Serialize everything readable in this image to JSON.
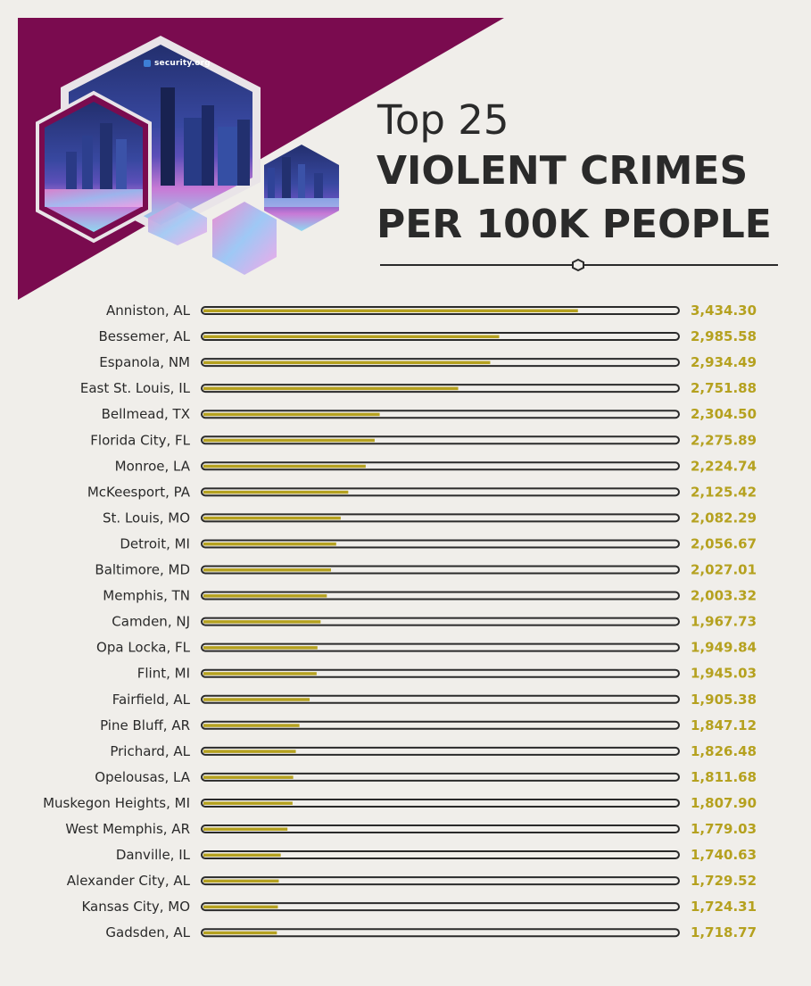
{
  "brand": {
    "logo_text": "security.org"
  },
  "colors": {
    "background": "#f0eeea",
    "banner": "#7a0b4f",
    "bar_fill": "#b5a11f",
    "track_stroke": "#2a2a2a",
    "text": "#2a2a2a"
  },
  "header": {
    "title_top": "Top 25",
    "title_line1": "VIOLENT CRIMES",
    "title_line2": "PER 100K PEOPLE"
  },
  "chart_data": {
    "type": "bar",
    "orientation": "horizontal",
    "title": "Top 25 VIOLENT CRIMES PER 100K PEOPLE",
    "xlabel": "",
    "ylabel": "",
    "categories": [
      "Anniston, AL",
      "Bessemer, AL",
      "Espanola, NM",
      "East St. Louis, IL",
      "Bellmead, TX",
      "Florida City, FL",
      "Monroe, LA",
      "McKeesport, PA",
      "St. Louis, MO",
      "Detroit, MI",
      "Baltimore, MD",
      "Memphis, TN",
      "Camden, NJ",
      "Opa Locka, FL",
      "Flint, MI",
      "Fairfield, AL",
      "Pine Bluff, AR",
      "Prichard, AL",
      "Opelousas, LA",
      "Muskegon Heights, MI",
      "West Memphis, AR",
      "Danville, IL",
      "Alexander City, AL",
      "Kansas City, MO",
      "Gadsden, AL"
    ],
    "values": [
      3434.3,
      2985.58,
      2934.49,
      2751.88,
      2304.5,
      2275.89,
      2224.74,
      2125.42,
      2082.29,
      2056.67,
      2027.01,
      2003.32,
      1967.73,
      1949.84,
      1945.03,
      1905.38,
      1847.12,
      1826.48,
      1811.68,
      1807.9,
      1779.03,
      1740.63,
      1729.52,
      1724.31,
      1718.77
    ],
    "value_labels": [
      "3,434.30",
      "2,985.58",
      "2,934.49",
      "2,751.88",
      "2,304.50",
      "2,275.89",
      "2,224.74",
      "2,125.42",
      "2,082.29",
      "2,056.67",
      "2,027.01",
      "2,003.32",
      "1,967.73",
      "1,949.84",
      "1,945.03",
      "1,905.38",
      "1,847.12",
      "1,826.48",
      "1,811.68",
      "1,807.90",
      "1,779.03",
      "1,740.63",
      "1,729.52",
      "1,724.31",
      "1,718.77"
    ],
    "xlim": [
      1300,
      4000
    ]
  }
}
